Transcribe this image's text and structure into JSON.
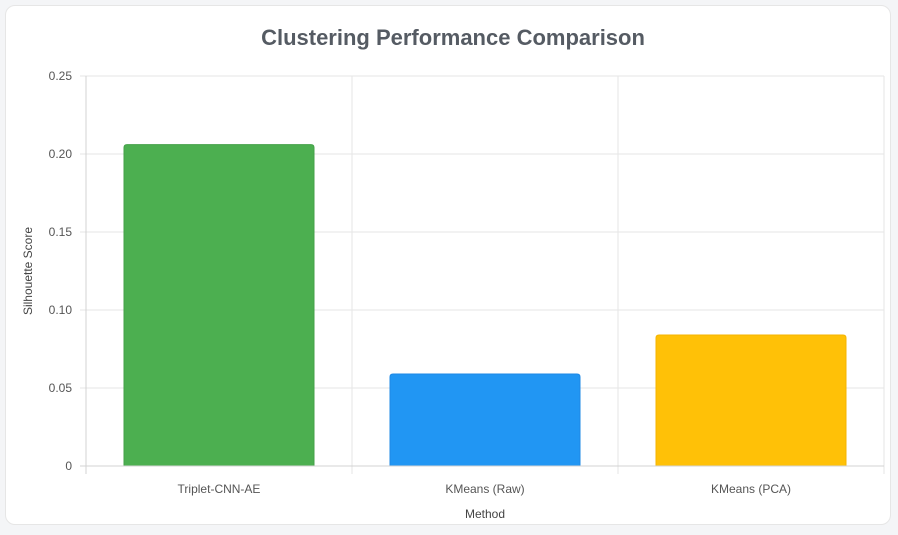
{
  "chart_data": {
    "type": "bar",
    "title": "Clustering Performance Comparison",
    "xlabel": "Method",
    "ylabel": "Silhouette Score",
    "categories": [
      "Triplet-CNN-AE",
      "KMeans (Raw)",
      "KMeans (PCA)"
    ],
    "values": [
      0.206,
      0.059,
      0.084
    ],
    "ylim": [
      0,
      0.25
    ],
    "yticks": [
      0,
      0.05,
      0.1,
      0.15,
      0.2,
      0.25
    ],
    "ytick_labels": [
      "0",
      "0.05",
      "0.10",
      "0.15",
      "0.20",
      "0.25"
    ],
    "colors": [
      "#4caf50",
      "#2196f3",
      "#ffc107"
    ],
    "border_colors": [
      "#43a047",
      "#1e88e5",
      "#f4b400"
    ],
    "grid": true,
    "legend": "none"
  }
}
